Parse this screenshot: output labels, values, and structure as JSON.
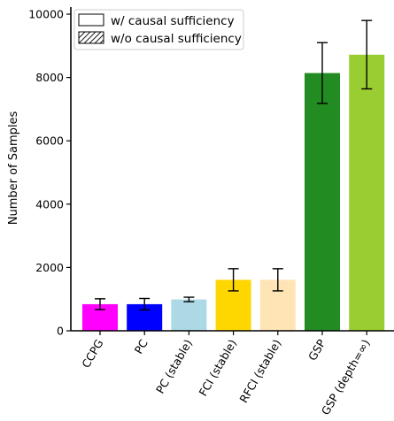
{
  "chart_data": {
    "type": "bar",
    "categories": [
      "CCPG",
      "PC",
      "PC (stable)",
      "FCI (stable)",
      "RFCI (stable)",
      "GSP",
      "GSP (depth=∞)"
    ],
    "values": [
      840,
      840,
      990,
      1610,
      1610,
      8140,
      8720
    ],
    "errors": [
      170,
      180,
      70,
      350,
      350,
      960,
      1080
    ],
    "colors": [
      "#ff00ff",
      "#0000ff",
      "#add8e6",
      "#ffd700",
      "#ffe4b5",
      "#228b22",
      "#9acd32"
    ],
    "ylabel": "Number of Samples",
    "xlabel": "",
    "ylim": [
      0,
      10000
    ],
    "yticks": [
      0,
      2000,
      4000,
      6000,
      8000,
      10000
    ],
    "legend": {
      "position": "top-left",
      "entries": [
        {
          "label": "w/ causal sufficiency",
          "hatch": false
        },
        {
          "label": "w/o causal sufficiency",
          "hatch": true
        }
      ]
    }
  }
}
